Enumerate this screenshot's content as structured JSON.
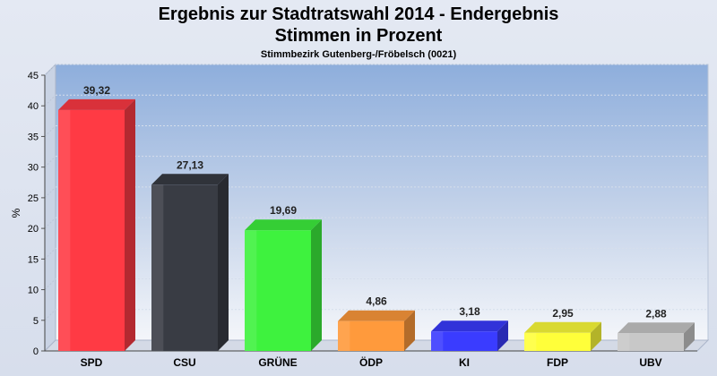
{
  "chart_data": {
    "type": "bar",
    "title": "Ergebnis zur Stadtratswahl 2014 - Endergebnis",
    "title2": "Stimmen in Prozent",
    "subtitle": "Stimmbezirk Gutenberg-/Fröbelsch (0021)",
    "ylabel": "%",
    "ylim": [
      0,
      45
    ],
    "yticks": [
      "0",
      "5",
      "10",
      "15",
      "20",
      "25",
      "30",
      "35",
      "40",
      "45"
    ],
    "categories": [
      "SPD",
      "CSU",
      "GRÜNE",
      "ÖDP",
      "KI",
      "FDP",
      "UBV"
    ],
    "values": [
      39.32,
      27.13,
      19.69,
      4.86,
      3.18,
      2.95,
      2.88
    ],
    "labels": [
      "39,32",
      "27,13",
      "19,69",
      "4,86",
      "3,18",
      "2,95",
      "2,88"
    ],
    "colors": [
      "#ff3a44",
      "#393c44",
      "#3ef23e",
      "#ff9a3c",
      "#3a3cff",
      "#ffff3a",
      "#c8c8c8"
    ],
    "grid": true,
    "legend": "none"
  }
}
